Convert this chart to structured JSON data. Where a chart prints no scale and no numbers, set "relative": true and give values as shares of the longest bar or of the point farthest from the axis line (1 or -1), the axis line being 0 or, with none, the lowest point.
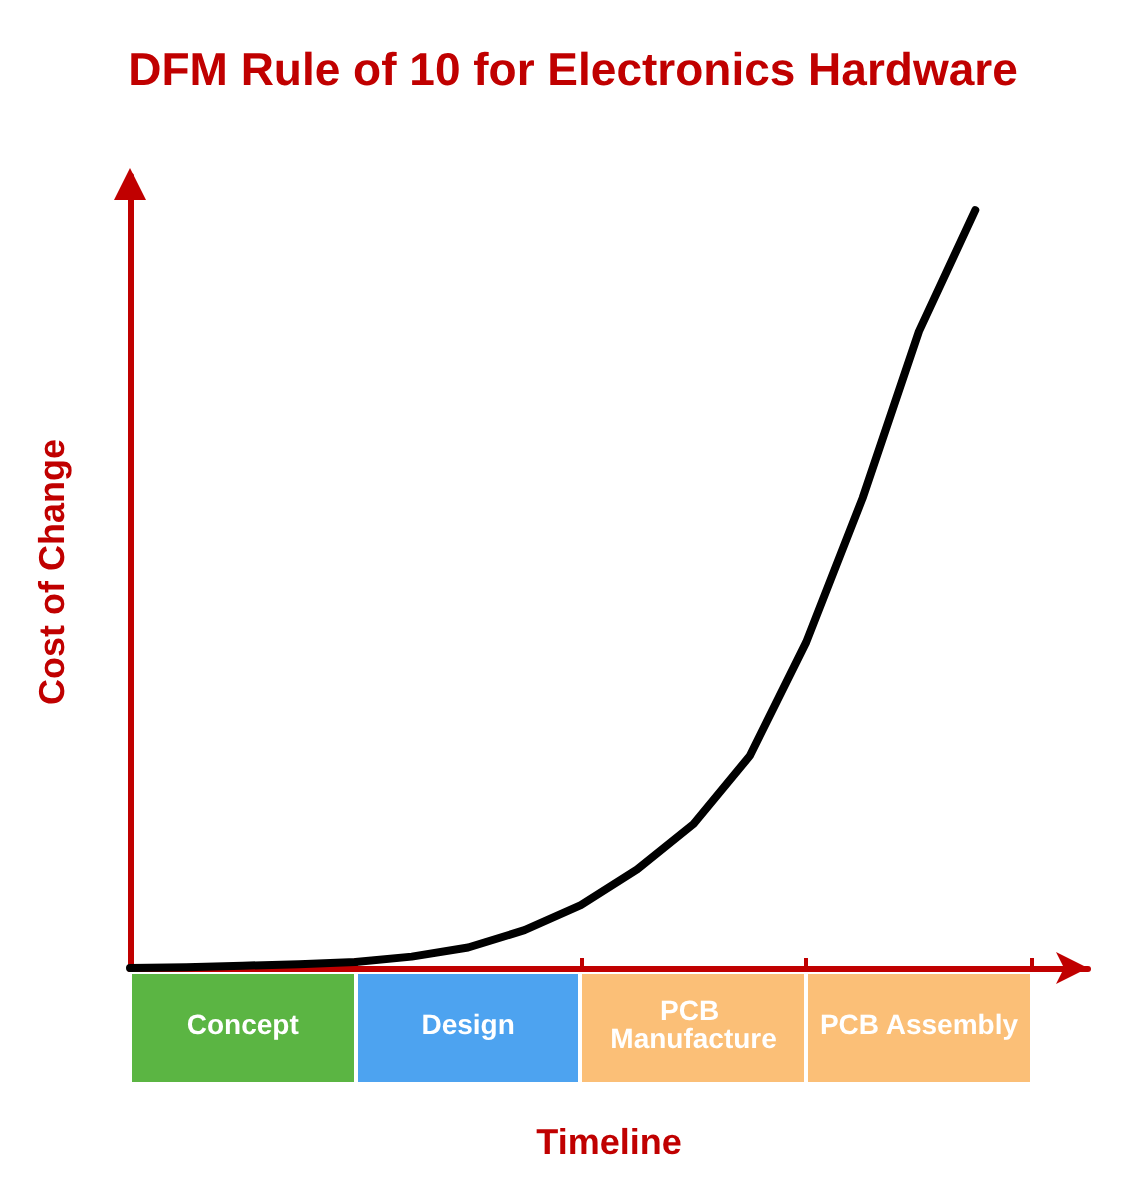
{
  "chart_data": {
    "type": "line",
    "title": "DFM Rule of 10 for Electronics Hardware",
    "xlabel": "Timeline",
    "ylabel": "Cost of Change",
    "relative": true,
    "categories": [
      null,
      null,
      "Concept",
      null,
      null,
      null,
      "Design",
      null,
      null,
      null,
      "PCB Manufacture",
      null,
      null,
      null,
      "PCB Assembly",
      null,
      null
    ],
    "series": [
      {
        "color": "#000000",
        "values": [
          0,
          0.001,
          0.003,
          0.005,
          0.008,
          0.015,
          0.027,
          0.05,
          0.083,
          0.13,
          0.19,
          0.28,
          0.43,
          0.62,
          0.84,
          1,
          null
        ]
      }
    ],
    "grid": false,
    "marker": "none",
    "line_style": "solid"
  }
}
